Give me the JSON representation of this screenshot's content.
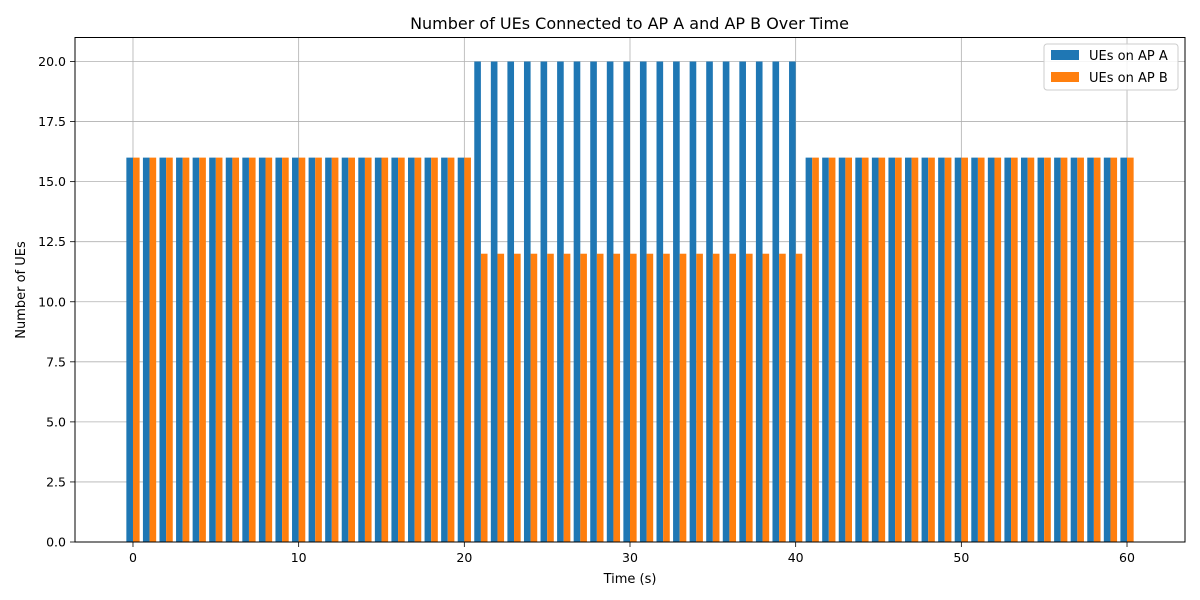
{
  "chart_data": {
    "type": "bar",
    "title": "Number of UEs Connected to AP A and AP B Over Time",
    "xlabel": "Time (s)",
    "ylabel": "Number of UEs",
    "xlim": [
      -3.5,
      63.5
    ],
    "ylim": [
      0,
      21
    ],
    "x_ticks": [
      0,
      10,
      20,
      30,
      40,
      50,
      60
    ],
    "y_ticks": [
      0.0,
      2.5,
      5.0,
      7.5,
      10.0,
      12.5,
      15.0,
      17.5,
      20.0
    ],
    "y_tick_labels": [
      "0.0",
      "2.5",
      "5.0",
      "7.5",
      "10.0",
      "12.5",
      "15.0",
      "17.5",
      "20.0"
    ],
    "grid": true,
    "legend_position": "top-right",
    "x": [
      0,
      1,
      2,
      3,
      4,
      5,
      6,
      7,
      8,
      9,
      10,
      11,
      12,
      13,
      14,
      15,
      16,
      17,
      18,
      19,
      20,
      21,
      22,
      23,
      24,
      25,
      26,
      27,
      28,
      29,
      30,
      31,
      32,
      33,
      34,
      35,
      36,
      37,
      38,
      39,
      40,
      41,
      42,
      43,
      44,
      45,
      46,
      47,
      48,
      49,
      50,
      51,
      52,
      53,
      54,
      55,
      56,
      57,
      58,
      59,
      60
    ],
    "series": [
      {
        "name": "UEs on AP A",
        "color": "#1f77b4",
        "values": [
          16,
          16,
          16,
          16,
          16,
          16,
          16,
          16,
          16,
          16,
          16,
          16,
          16,
          16,
          16,
          16,
          16,
          16,
          16,
          16,
          16,
          20,
          20,
          20,
          20,
          20,
          20,
          20,
          20,
          20,
          20,
          20,
          20,
          20,
          20,
          20,
          20,
          20,
          20,
          20,
          20,
          16,
          16,
          16,
          16,
          16,
          16,
          16,
          16,
          16,
          16,
          16,
          16,
          16,
          16,
          16,
          16,
          16,
          16,
          16,
          16
        ]
      },
      {
        "name": "UEs on AP B",
        "color": "#ff7f0e",
        "values": [
          16,
          16,
          16,
          16,
          16,
          16,
          16,
          16,
          16,
          16,
          16,
          16,
          16,
          16,
          16,
          16,
          16,
          16,
          16,
          16,
          16,
          12,
          12,
          12,
          12,
          12,
          12,
          12,
          12,
          12,
          12,
          12,
          12,
          12,
          12,
          12,
          12,
          12,
          12,
          12,
          12,
          16,
          16,
          16,
          16,
          16,
          16,
          16,
          16,
          16,
          16,
          16,
          16,
          16,
          16,
          16,
          16,
          16,
          16,
          16,
          16
        ]
      }
    ]
  }
}
